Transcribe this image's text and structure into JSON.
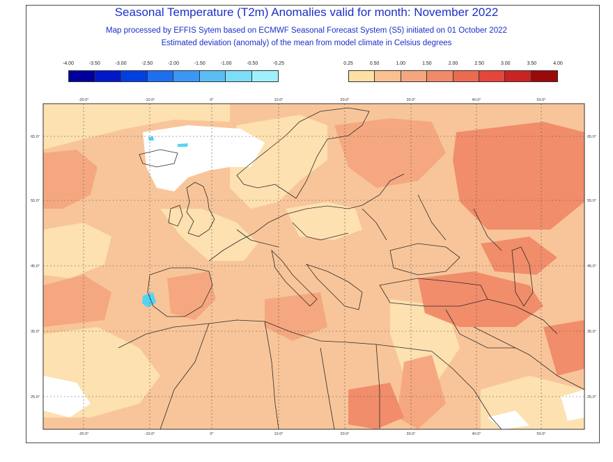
{
  "title": "Seasonal Temperature (T2m) Anomalies valid for month: November 2022",
  "subtitle_line1": "Map processed by EFFIS Sytem based on ECMWF Seasonal Forecast System (S5) initiated on 01 October 2022",
  "subtitle_line2": "Estimated deviation (anomaly) of the mean from model climate in Celsius degrees",
  "legend_negative": {
    "labels": [
      "-4.00",
      "-3.50",
      "-3.00",
      "-2.50",
      "-2.00",
      "-1.50",
      "-1.00",
      "-0.50",
      "-0.25"
    ],
    "colors": [
      "#00009c",
      "#0018c8",
      "#0040e0",
      "#1e6ef0",
      "#3c96f5",
      "#5abef5",
      "#7ddcf8",
      "#9ff0fc"
    ]
  },
  "legend_positive": {
    "labels": [
      "0.25",
      "0.50",
      "1.00",
      "1.50",
      "2.00",
      "2.50",
      "3.00",
      "3.50",
      "4.00"
    ],
    "colors": [
      "#fde0a4",
      "#f9c090",
      "#f5a67e",
      "#f18a68",
      "#ec6a50",
      "#e3463a",
      "#c82422",
      "#9a0a0a"
    ]
  },
  "lon_ticks": [
    "-20.0°",
    "-10.0°",
    "0°",
    "10.0°",
    "20.0°",
    "30.0°",
    "40.0°",
    "50.0°"
  ],
  "lat_ticks": [
    "65.0°",
    "55.0°",
    "45.0°",
    "35.0°",
    "25.0°"
  ],
  "map_colors": {
    "background": "#f8c59a",
    "light": "#fde1b0",
    "medium": "#f5a87f",
    "strong": "#f18d6a",
    "neutral": "#ffffff",
    "cool": "#55d4f2",
    "border": "#2a2a2a",
    "grid": "#555555"
  }
}
